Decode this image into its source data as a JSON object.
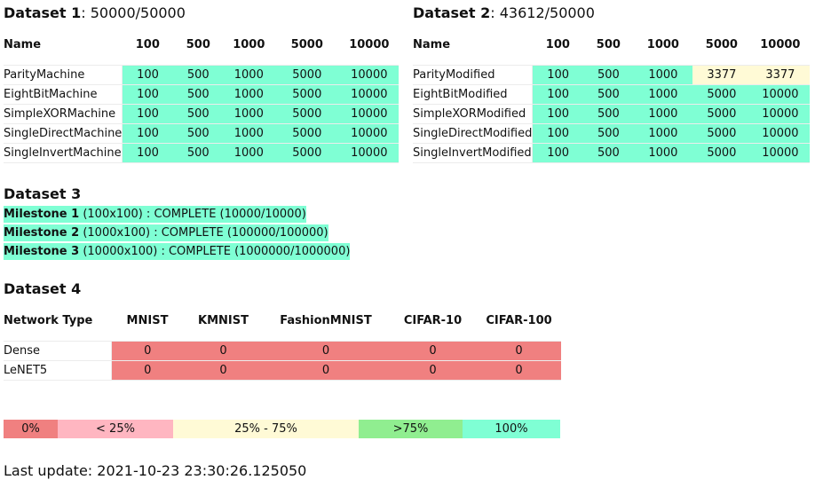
{
  "dataset1": {
    "title": "Dataset 1",
    "score": ": 50000/50000",
    "headers": [
      "Name",
      "100",
      "500",
      "1000",
      "5000",
      "10000"
    ],
    "rows": [
      {
        "name": "ParityMachine",
        "values": [
          "100",
          "500",
          "1000",
          "5000",
          "10000"
        ]
      },
      {
        "name": "EightBitMachine",
        "values": [
          "100",
          "500",
          "1000",
          "5000",
          "10000"
        ]
      },
      {
        "name": "SimpleXORMachine",
        "values": [
          "100",
          "500",
          "1000",
          "5000",
          "10000"
        ]
      },
      {
        "name": "SingleDirectMachine",
        "values": [
          "100",
          "500",
          "1000",
          "5000",
          "10000"
        ]
      },
      {
        "name": "SingleInvertMachine",
        "values": [
          "100",
          "500",
          "1000",
          "5000",
          "10000"
        ]
      }
    ]
  },
  "dataset2": {
    "title": "Dataset 2",
    "score": ": 43612/50000",
    "headers": [
      "Name",
      "100",
      "500",
      "1000",
      "5000",
      "10000"
    ],
    "rows": [
      {
        "name": "ParityModified",
        "values": [
          "100",
          "500",
          "1000",
          "3377",
          "3377"
        ]
      },
      {
        "name": "EightBitModified",
        "values": [
          "100",
          "500",
          "1000",
          "5000",
          "10000"
        ]
      },
      {
        "name": "SimpleXORModified",
        "values": [
          "100",
          "500",
          "1000",
          "5000",
          "10000"
        ]
      },
      {
        "name": "SingleDirectModified",
        "values": [
          "100",
          "500",
          "1000",
          "5000",
          "10000"
        ]
      },
      {
        "name": "SingleInvertModified",
        "values": [
          "100",
          "500",
          "1000",
          "5000",
          "10000"
        ]
      }
    ]
  },
  "dataset3": {
    "title": "Dataset 3",
    "milestones": [
      {
        "label": "Milestone 1",
        "detail": " (100x100) : COMPLETE (10000/10000)"
      },
      {
        "label": "Milestone 2",
        "detail": " (1000x100) : COMPLETE (100000/100000)"
      },
      {
        "label": "Milestone 3",
        "detail": " (10000x100) : COMPLETE (1000000/1000000)"
      }
    ]
  },
  "dataset4": {
    "title": "Dataset 4",
    "headers": [
      "Network Type",
      "MNIST",
      "KMNIST",
      "FashionMNIST",
      "CIFAR-10",
      "CIFAR-100"
    ],
    "rows": [
      {
        "name": "Dense",
        "values": [
          "0",
          "0",
          "0",
          "0",
          "0"
        ]
      },
      {
        "name": "LeNET5",
        "values": [
          "0",
          "0",
          "0",
          "0",
          "0"
        ]
      }
    ]
  },
  "legend": [
    "0%",
    "< 25%",
    "25% - 75%",
    ">75%",
    "100%"
  ],
  "colors": {
    "complete": "#7fffd4",
    "partial": "#fffad6",
    "zero": "#f08080",
    "under25": "#ffb6c1",
    "over75": "#90ee90"
  },
  "last_update": "Last update: 2021-10-23 23:30:26.125050"
}
